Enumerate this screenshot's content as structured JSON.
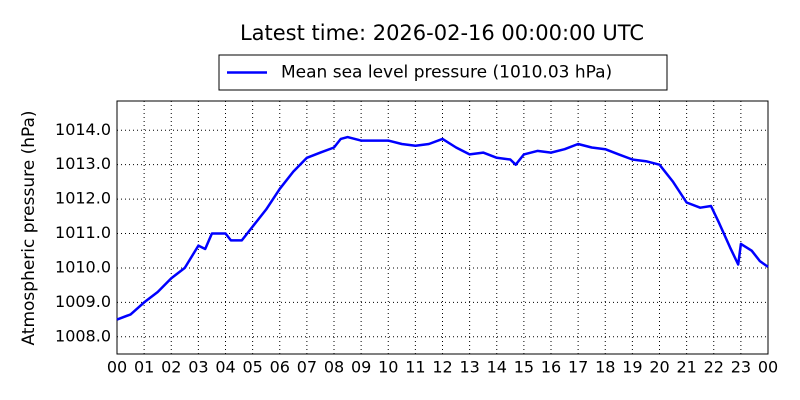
{
  "chart_data": {
    "type": "line",
    "title": "Latest time: 2026-02-16 00:00:00 UTC",
    "y_label": "Atmospheric pressure (hPa)",
    "grid": true,
    "legend": "upper center",
    "x": [
      0,
      0.5,
      1,
      1.5,
      2,
      2.5,
      3,
      3.25,
      3.5,
      4,
      4.2,
      4.6,
      5,
      5.5,
      6,
      6.5,
      7,
      7.5,
      8,
      8.25,
      8.5,
      9,
      9.5,
      10,
      10.5,
      11,
      11.5,
      12,
      12.5,
      13,
      13.5,
      14,
      14.5,
      14.7,
      15,
      15.5,
      16,
      16.5,
      17,
      17.5,
      18,
      18.5,
      19,
      19.5,
      20,
      20.5,
      21,
      21.5,
      21.9,
      22.2,
      22.6,
      22.9,
      23,
      23.4,
      23.7,
      24
    ],
    "series": [
      {
        "name": "Mean sea level pressure (1010.03 hPa)",
        "color": "#0000ff",
        "values": [
          1008.5,
          1008.65,
          1009.0,
          1009.3,
          1009.7,
          1010.0,
          1010.65,
          1010.55,
          1011.0,
          1011.0,
          1010.8,
          1010.8,
          1011.2,
          1011.7,
          1012.3,
          1012.8,
          1013.2,
          1013.35,
          1013.5,
          1013.75,
          1013.8,
          1013.7,
          1013.7,
          1013.7,
          1013.6,
          1013.55,
          1013.6,
          1013.75,
          1013.5,
          1013.3,
          1013.35,
          1013.2,
          1013.15,
          1013.0,
          1013.3,
          1013.4,
          1013.35,
          1013.45,
          1013.6,
          1013.5,
          1013.45,
          1013.3,
          1013.15,
          1013.1,
          1013.0,
          1012.5,
          1011.9,
          1011.75,
          1011.8,
          1011.3,
          1010.6,
          1010.1,
          1010.7,
          1010.5,
          1010.2,
          1010.03
        ]
      }
    ],
    "xlim": [
      0,
      24
    ],
    "xticks": [
      {
        "value": 0,
        "label": "00"
      },
      {
        "value": 1,
        "label": "01"
      },
      {
        "value": 2,
        "label": "02"
      },
      {
        "value": 3,
        "label": "03"
      },
      {
        "value": 4,
        "label": "04"
      },
      {
        "value": 5,
        "label": "05"
      },
      {
        "value": 6,
        "label": "06"
      },
      {
        "value": 7,
        "label": "07"
      },
      {
        "value": 8,
        "label": "08"
      },
      {
        "value": 9,
        "label": "09"
      },
      {
        "value": 10,
        "label": "10"
      },
      {
        "value": 11,
        "label": "11"
      },
      {
        "value": 12,
        "label": "12"
      },
      {
        "value": 13,
        "label": "13"
      },
      {
        "value": 14,
        "label": "14"
      },
      {
        "value": 15,
        "label": "15"
      },
      {
        "value": 16,
        "label": "16"
      },
      {
        "value": 17,
        "label": "17"
      },
      {
        "value": 18,
        "label": "18"
      },
      {
        "value": 19,
        "label": "19"
      },
      {
        "value": 20,
        "label": "20"
      },
      {
        "value": 21,
        "label": "21"
      },
      {
        "value": 22,
        "label": "22"
      },
      {
        "value": 23,
        "label": "23"
      },
      {
        "value": 24,
        "label": "00"
      }
    ],
    "ylim": [
      1007.5,
      1014.85
    ],
    "yticks": [
      {
        "value": 1008,
        "label": "1008.0"
      },
      {
        "value": 1009,
        "label": "1009.0"
      },
      {
        "value": 1010,
        "label": "1010.0"
      },
      {
        "value": 1011,
        "label": "1011.0"
      },
      {
        "value": 1012,
        "label": "1012.0"
      },
      {
        "value": 1013,
        "label": "1013.0"
      },
      {
        "value": 1014,
        "label": "1014.0"
      }
    ]
  }
}
